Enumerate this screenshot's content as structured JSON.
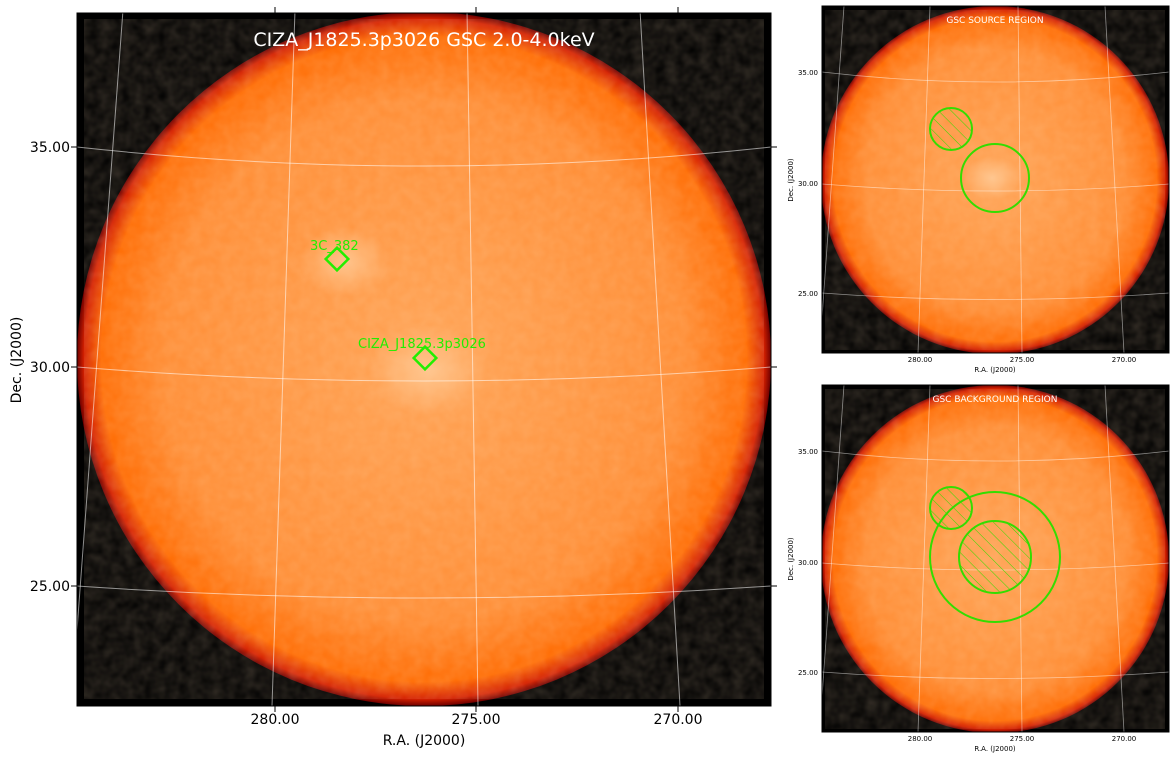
{
  "main_panel": {
    "title": "CIZA_J1825.3p3026 GSC 2.0-4.0keV",
    "xlabel": "R.A. (J2000)",
    "ylabel": "Dec. (J2000)",
    "x_ticks": [
      "280.00",
      "275.00",
      "270.00"
    ],
    "y_ticks": [
      "35.00",
      "30.00",
      "25.00"
    ],
    "markers": [
      {
        "label": "3C_382"
      },
      {
        "label": "CIZA_J1825.3p3026"
      }
    ],
    "marker_color": "#22ee00"
  },
  "source_panel": {
    "title": "GSC SOURCE REGION",
    "xlabel": "R.A. (J2000)",
    "ylabel": "Dec. (J2000)",
    "x_ticks": [
      "280.00",
      "275.00",
      "270.00"
    ],
    "y_ticks": [
      "35.00",
      "30.00",
      "25.00"
    ]
  },
  "background_panel": {
    "title": "GSC BACKGROUND REGION",
    "xlabel": "R.A. (J2000)",
    "ylabel": "Dec. (J2000)",
    "x_ticks": [
      "280.00",
      "275.00",
      "270.00"
    ],
    "y_ticks": [
      "35.00",
      "30.00",
      "25.00"
    ]
  },
  "colors": {
    "background": "#000000",
    "disk_center": "#ffa355",
    "disk_edge": "#ff6a00",
    "rim": "#d42000",
    "region": "#33dd00"
  }
}
